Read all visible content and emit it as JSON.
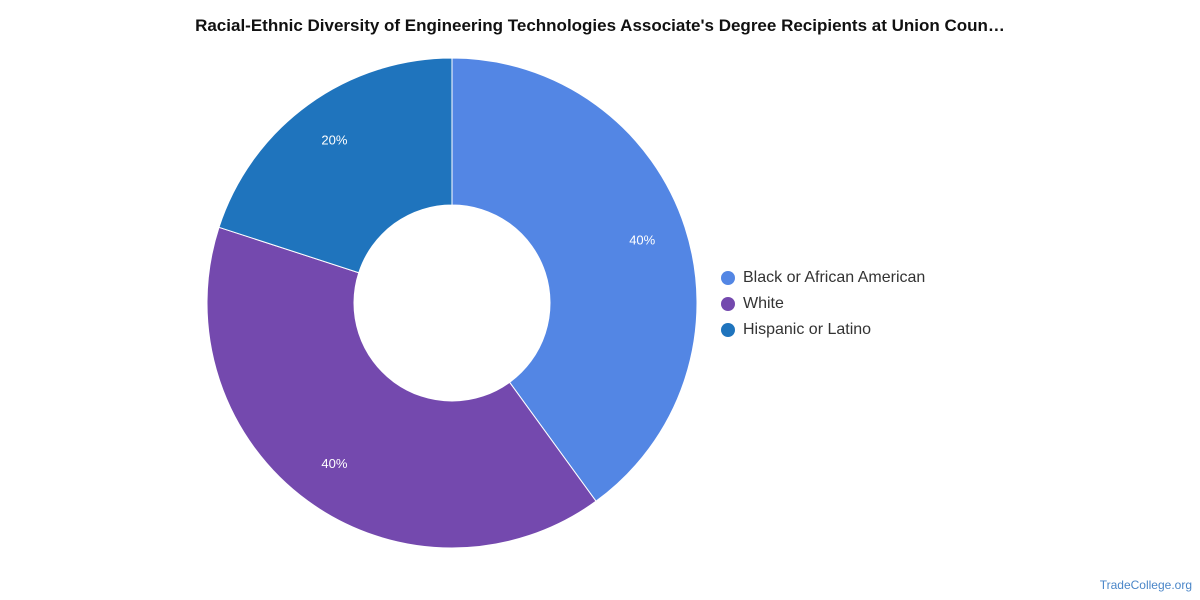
{
  "chart_data": {
    "type": "pie",
    "title": "Racial-Ethnic Diversity of Engineering Technologies Associate's Degree Recipients at Union Coun…",
    "categories": [
      "Black or African American",
      "White",
      "Hispanic or Latino"
    ],
    "values": [
      40,
      40,
      20
    ],
    "value_labels": [
      "40%",
      "40%",
      "20%"
    ],
    "colors": [
      "#5386e4",
      "#7449ae",
      "#1f74bd"
    ],
    "donut": true,
    "legend_position": "right"
  },
  "watermark": "TradeCollege.org"
}
